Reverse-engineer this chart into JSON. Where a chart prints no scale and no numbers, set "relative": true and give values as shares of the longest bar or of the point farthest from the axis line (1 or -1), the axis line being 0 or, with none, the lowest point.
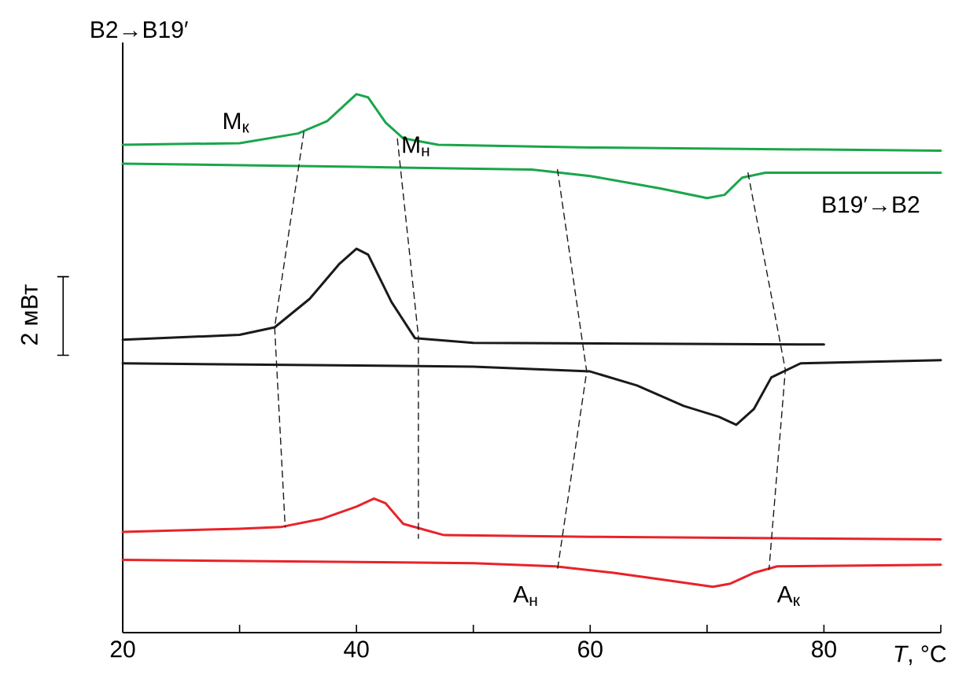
{
  "chart_data": {
    "type": "line",
    "relative": true,
    "xlabel": "*T*, °C",
    "xlim": [
      20,
      90
    ],
    "xticks": [
      20,
      {
        "value": 30,
        "label": null
      },
      40,
      {
        "value": 50,
        "label": null
      },
      60,
      {
        "value": 70,
        "label": null
      },
      80,
      {
        "value": 90,
        "label": null
      }
    ],
    "marker": "none",
    "annotations": [
      "B2→B19′",
      "B19′→B2",
      "M$_{к}$",
      "M$_{н}$",
      "A$_{н}$",
      "A$_{к}$",
      "2 мВт"
    ],
    "series": [
      {
        "color": "#1aa64a",
        "line_style": "solid",
        "x": [
          20,
          30,
          35,
          37.5,
          40,
          41,
          42.5,
          44,
          47,
          60,
          90
        ],
        "values": [
          0.906,
          0.909,
          0.927,
          0.95,
          1.0,
          0.994,
          0.947,
          0.918,
          0.906,
          0.901,
          0.895
        ]
      },
      {
        "color": "#1aa64a",
        "line_style": "solid",
        "x": [
          20,
          40,
          55,
          60,
          66,
          70,
          71.5,
          73,
          75,
          90
        ],
        "values": [
          0.871,
          0.865,
          0.86,
          0.848,
          0.825,
          0.807,
          0.813,
          0.845,
          0.854,
          0.854
        ]
      },
      {
        "color": "#1a1a1a",
        "line_style": "solid",
        "x": [
          20,
          30,
          33,
          36,
          38.5,
          40,
          41,
          43,
          45,
          50,
          80
        ],
        "values": [
          0.544,
          0.553,
          0.567,
          0.62,
          0.684,
          0.713,
          0.702,
          0.614,
          0.547,
          0.538,
          0.535
        ]
      },
      {
        "color": "#1a1a1a",
        "line_style": "solid",
        "x": [
          20,
          50,
          60,
          64,
          68,
          71,
          72.5,
          74,
          75.5,
          78,
          90
        ],
        "values": [
          0.5,
          0.494,
          0.485,
          0.459,
          0.421,
          0.401,
          0.386,
          0.415,
          0.474,
          0.5,
          0.506
        ]
      },
      {
        "color": "#e8232a",
        "line_style": "solid",
        "x": [
          20,
          30,
          33.5,
          37,
          40,
          41.5,
          42.5,
          44,
          46,
          47.5,
          60,
          90
        ],
        "values": [
          0.187,
          0.193,
          0.196,
          0.211,
          0.234,
          0.249,
          0.24,
          0.202,
          0.19,
          0.181,
          0.178,
          0.173
        ]
      },
      {
        "color": "#e8232a",
        "line_style": "solid",
        "x": [
          20,
          50,
          57,
          62,
          66,
          70.5,
          72,
          74,
          76,
          90
        ],
        "values": [
          0.135,
          0.129,
          0.123,
          0.111,
          0.099,
          0.085,
          0.091,
          0.111,
          0.123,
          0.126
        ]
      },
      {
        "color": "#1a1a1a",
        "line_style": "dashed",
        "x": [
          35.5,
          33.0,
          33.9
        ],
        "values": [
          0.93,
          0.567,
          0.196
        ]
      },
      {
        "color": "#1a1a1a",
        "line_style": "dashed",
        "x": [
          43.5,
          45.3,
          45.3
        ],
        "values": [
          0.917,
          0.55,
          0.175
        ]
      },
      {
        "color": "#1a1a1a",
        "line_style": "dashed",
        "x": [
          57.2,
          59.7,
          57.2
        ],
        "values": [
          0.86,
          0.485,
          0.117
        ]
      },
      {
        "color": "#1a1a1a",
        "line_style": "dashed",
        "x": [
          73.5,
          76.7,
          75.3
        ],
        "values": [
          0.854,
          0.488,
          0.117
        ]
      }
    ]
  }
}
